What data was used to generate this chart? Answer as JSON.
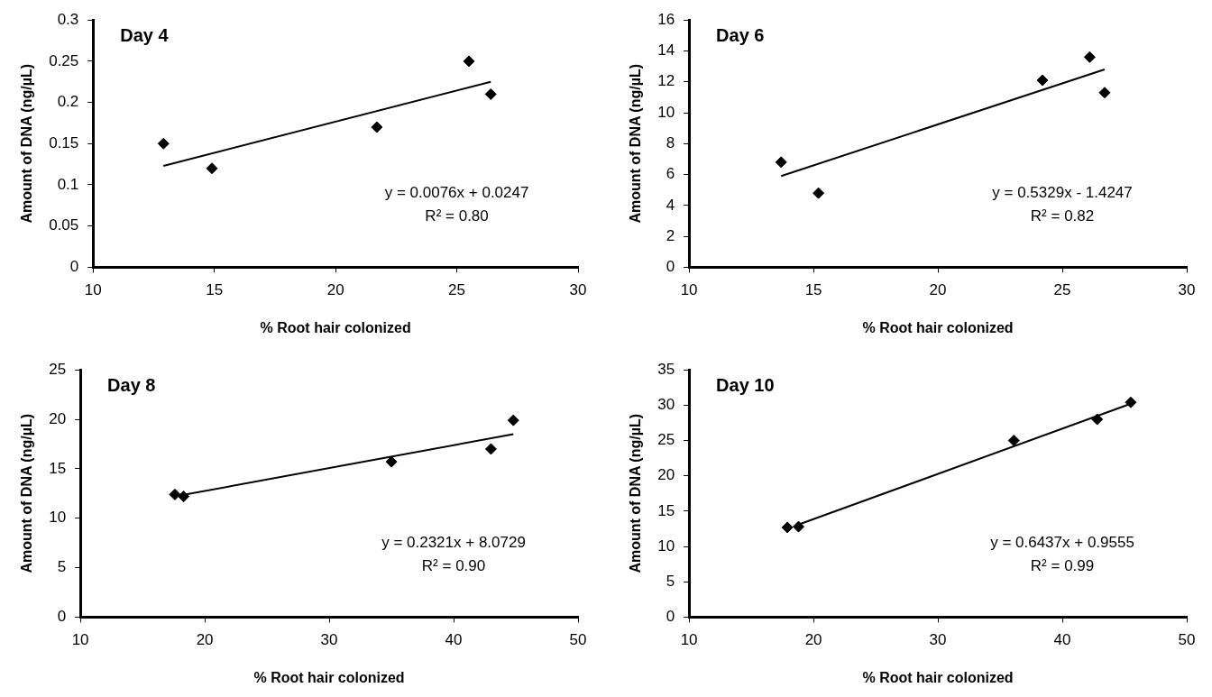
{
  "chart_data": [
    {
      "type": "scatter",
      "title": "Day 4",
      "xlabel": "% Root hair colonized",
      "ylabel": "Amount of DNA (ng/µL)",
      "xlim": [
        10,
        30
      ],
      "xticks": [
        10,
        15,
        20,
        25,
        30
      ],
      "ylim": [
        0,
        0.3
      ],
      "yticks": [
        0,
        0.05,
        0.1,
        0.15,
        0.2,
        0.25,
        0.3
      ],
      "marker": "diamond",
      "annotations": [
        "y = 0.0076x + 0.0247",
        "R² = 0.80"
      ],
      "series": [
        {
          "type": "scatter",
          "color": "#000000",
          "x": [
            12.9,
            14.9,
            21.7,
            25.5,
            26.4
          ],
          "values": [
            0.15,
            0.12,
            0.17,
            0.25,
            0.21
          ]
        },
        {
          "type": "line",
          "color": "#000000",
          "x": [
            12.9,
            26.4
          ],
          "values": [
            0.123,
            0.225
          ],
          "marker": "none"
        }
      ]
    },
    {
      "type": "scatter",
      "title": "Day 6",
      "xlabel": "% Root hair colonized",
      "ylabel": "Amount of DNA (ng/µL)",
      "xlim": [
        10,
        30
      ],
      "xticks": [
        10,
        15,
        20,
        25,
        30
      ],
      "ylim": [
        0,
        16
      ],
      "yticks": [
        0,
        2,
        4,
        6,
        8,
        10,
        12,
        14,
        16
      ],
      "marker": "diamond",
      "annotations": [
        "y = 0.5329x - 1.4247",
        "R² = 0.82"
      ],
      "series": [
        {
          "type": "scatter",
          "color": "#000000",
          "x": [
            13.7,
            15.2,
            24.2,
            26.1,
            26.7
          ],
          "values": [
            6.8,
            4.8,
            12.1,
            13.6,
            11.3
          ]
        },
        {
          "type": "line",
          "color": "#000000",
          "x": [
            13.7,
            26.7
          ],
          "values": [
            5.9,
            12.8
          ],
          "marker": "none"
        }
      ]
    },
    {
      "type": "scatter",
      "title": "Day 8",
      "xlabel": "% Root hair colonized",
      "ylabel": "Amount of DNA (ng/µL)",
      "xlim": [
        10,
        50
      ],
      "xticks": [
        10,
        20,
        30,
        40,
        50
      ],
      "ylim": [
        0,
        25
      ],
      "yticks": [
        0,
        5,
        10,
        15,
        20,
        25
      ],
      "marker": "diamond",
      "annotations": [
        "y = 0.2321x + 8.0729",
        "R² = 0.90"
      ],
      "series": [
        {
          "type": "scatter",
          "color": "#000000",
          "x": [
            17.6,
            18.3,
            35,
            43,
            44.8
          ],
          "values": [
            12.4,
            12.2,
            15.7,
            17,
            19.9
          ]
        },
        {
          "type": "line",
          "color": "#000000",
          "x": [
            17.6,
            44.8
          ],
          "values": [
            12.2,
            18.5
          ],
          "marker": "none"
        }
      ]
    },
    {
      "type": "scatter",
      "title": "Day 10",
      "xlabel": "% Root hair colonized",
      "ylabel": "Amount of DNA (ng/µL)",
      "xlim": [
        10,
        50
      ],
      "xticks": [
        10,
        20,
        30,
        40,
        50
      ],
      "ylim": [
        0,
        35
      ],
      "yticks": [
        0,
        5,
        10,
        15,
        20,
        25,
        30,
        35
      ],
      "marker": "diamond",
      "annotations": [
        "y = 0.6437x + 0.9555",
        "R² = 0.99"
      ],
      "series": [
        {
          "type": "scatter",
          "color": "#000000",
          "x": [
            17.9,
            18.8,
            36.1,
            42.8,
            45.5
          ],
          "values": [
            12.7,
            12.8,
            25,
            28,
            30.4
          ]
        },
        {
          "type": "line",
          "color": "#000000",
          "x": [
            18.8,
            45.5
          ],
          "values": [
            13.1,
            30.2
          ],
          "marker": "none"
        }
      ]
    }
  ]
}
